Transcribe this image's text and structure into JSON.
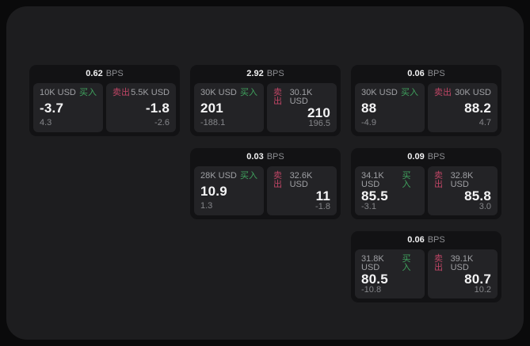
{
  "labels": {
    "bps": "BPS",
    "buy": "买入",
    "sell": "卖出"
  },
  "colors": {
    "background": "#0a0a0b",
    "panel": "#1d1d1f",
    "card": "#121214",
    "tile": "#232326",
    "buy_green": "#40a35e",
    "sell_red": "#bf4565",
    "text_primary": "#f4f4f5",
    "text_muted": "#85868a"
  },
  "cards": [
    {
      "bps": "0.62",
      "buy": {
        "amount": "10K USD",
        "value": "-3.7",
        "sub": "4.3"
      },
      "sell": {
        "amount": "5.5K USD",
        "value": "-1.8",
        "sub": "-2.6"
      }
    },
    {
      "bps": "2.92",
      "buy": {
        "amount": "30K USD",
        "value": "201",
        "sub": "-188.1"
      },
      "sell": {
        "amount": "30.1K USD",
        "value": "210",
        "sub": "196.5"
      }
    },
    {
      "bps": "0.06",
      "buy": {
        "amount": "30K USD",
        "value": "88",
        "sub": "-4.9"
      },
      "sell": {
        "amount": "30K USD",
        "value": "88.2",
        "sub": "4.7"
      }
    },
    {
      "bps": "0.03",
      "buy": {
        "amount": "28K USD",
        "value": "10.9",
        "sub": "1.3"
      },
      "sell": {
        "amount": "32.6K USD",
        "value": "11",
        "sub": "-1.8"
      }
    },
    {
      "bps": "0.09",
      "buy": {
        "amount": "34.1K USD",
        "value": "85.5",
        "sub": "-3.1"
      },
      "sell": {
        "amount": "32.8K USD",
        "value": "85.8",
        "sub": "3.0"
      }
    },
    {
      "bps": "0.06",
      "buy": {
        "amount": "31.8K USD",
        "value": "80.5",
        "sub": "-10.8"
      },
      "sell": {
        "amount": "39.1K USD",
        "value": "80.7",
        "sub": "10.2"
      }
    }
  ]
}
